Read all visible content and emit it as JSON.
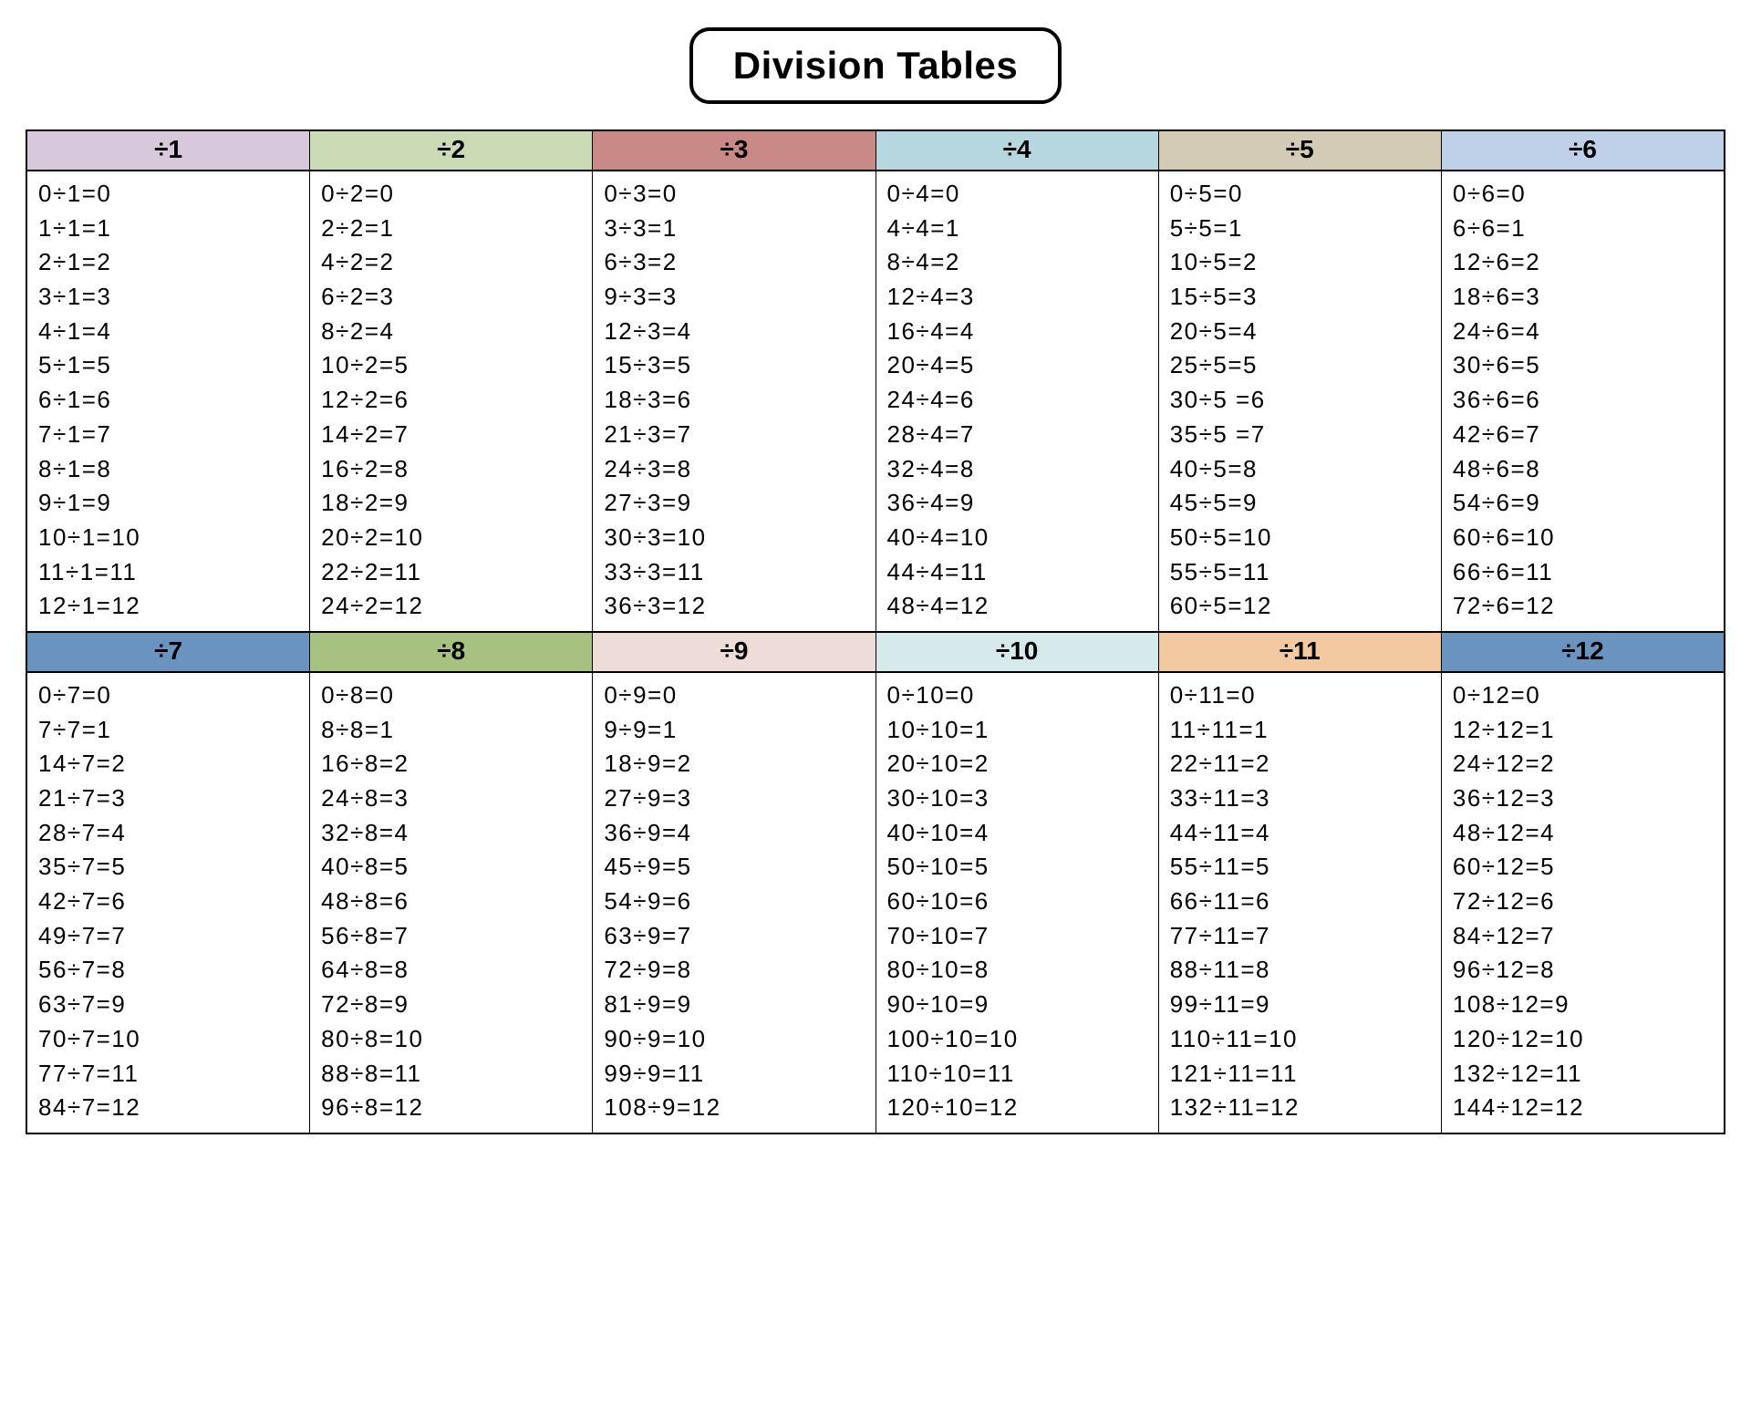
{
  "title": "Division Tables",
  "background_color": "#ffffff",
  "border_color": "#000000",
  "text_color": "#000000",
  "title_fontsize": 42,
  "header_fontsize": 28,
  "cell_fontsize": 26,
  "rows": [
    [
      {
        "header": "÷1",
        "header_color": "#d7c8db",
        "entries": [
          "0÷1=0",
          "1÷1=1",
          "2÷1=2",
          "3÷1=3",
          "4÷1=4",
          "5÷1=5",
          "6÷1=6",
          "7÷1=7",
          "8÷1=8",
          "9÷1=9",
          "10÷1=10",
          "11÷1=11",
          "12÷1=12"
        ]
      },
      {
        "header": "÷2",
        "header_color": "#cadbb5",
        "entries": [
          "0÷2=0",
          "2÷2=1",
          "4÷2=2",
          "6÷2=3",
          "8÷2=4",
          "10÷2=5",
          "12÷2=6",
          "14÷2=7",
          "16÷2=8",
          "18÷2=9",
          "20÷2=10",
          "22÷2=11",
          "24÷2=12"
        ]
      },
      {
        "header": "÷3",
        "header_color": "#c98984",
        "entries": [
          "0÷3=0",
          "3÷3=1",
          "6÷3=2",
          "9÷3=3",
          "12÷3=4",
          "15÷3=5",
          "18÷3=6",
          "21÷3=7",
          "24÷3=8",
          "27÷3=9",
          "30÷3=10",
          "33÷3=11",
          "36÷3=12"
        ]
      },
      {
        "header": "÷4",
        "header_color": "#b6d7df",
        "entries": [
          "0÷4=0",
          "4÷4=1",
          "8÷4=2",
          "12÷4=3",
          "16÷4=4",
          "20÷4=5",
          "24÷4=6",
          "28÷4=7",
          "32÷4=8",
          "36÷4=9",
          "40÷4=10",
          "44÷4=11",
          "48÷4=12"
        ]
      },
      {
        "header": "÷5",
        "header_color": "#d3cbb3",
        "entries": [
          "0÷5=0",
          "5÷5=1",
          "10÷5=2",
          "15÷5=3",
          "20÷5=4",
          "25÷5=5",
          "30÷5 =6",
          "35÷5 =7",
          "40÷5=8",
          "45÷5=9",
          "50÷5=10",
          "55÷5=11",
          "60÷5=12"
        ]
      },
      {
        "header": "÷6",
        "header_color": "#bfd1e9",
        "entries": [
          "0÷6=0",
          "6÷6=1",
          "12÷6=2",
          "18÷6=3",
          "24÷6=4",
          "30÷6=5",
          "36÷6=6",
          "42÷6=7",
          "48÷6=8",
          "54÷6=9",
          "60÷6=10",
          "66÷6=11",
          "72÷6=12"
        ]
      }
    ],
    [
      {
        "header": "÷7",
        "header_color": "#6b93bf",
        "entries": [
          "0÷7=0",
          "7÷7=1",
          "14÷7=2",
          "21÷7=3",
          "28÷7=4",
          "35÷7=5",
          "42÷7=6",
          "49÷7=7",
          "56÷7=8",
          "63÷7=9",
          "70÷7=10",
          "77÷7=11",
          "84÷7=12"
        ]
      },
      {
        "header": "÷8",
        "header_color": "#a6c180",
        "entries": [
          "0÷8=0",
          "8÷8=1",
          "16÷8=2",
          "24÷8=3",
          "32÷8=4",
          "40÷8=5",
          "48÷8=6",
          "56÷8=7",
          "64÷8=8",
          "72÷8=9",
          "80÷8=10",
          "88÷8=11",
          "96÷8=12"
        ]
      },
      {
        "header": "÷9",
        "header_color": "#eddcd8",
        "entries": [
          "0÷9=0",
          "9÷9=1",
          "18÷9=2",
          "27÷9=3",
          "36÷9=4",
          "45÷9=5",
          "54÷9=6",
          "63÷9=7",
          "72÷9=8",
          "81÷9=9",
          "90÷9=10",
          "99÷9=11",
          "108÷9=12"
        ]
      },
      {
        "header": "÷10",
        "header_color": "#d6eaec",
        "entries": [
          "0÷10=0",
          "10÷10=1",
          "20÷10=2",
          "30÷10=3",
          "40÷10=4",
          "50÷10=5",
          "60÷10=6",
          "70÷10=7",
          "80÷10=8",
          "90÷10=9",
          "100÷10=10",
          "110÷10=11",
          "120÷10=12"
        ]
      },
      {
        "header": "÷11",
        "header_color": "#f2c9a1",
        "entries": [
          "0÷11=0",
          "11÷11=1",
          "22÷11=2",
          "33÷11=3",
          "44÷11=4",
          "55÷11=5",
          "66÷11=6",
          "77÷11=7",
          "88÷11=8",
          "99÷11=9",
          "110÷11=10",
          "121÷11=11",
          "132÷11=12"
        ]
      },
      {
        "header": "÷12",
        "header_color": "#6b93bf",
        "entries": [
          "0÷12=0",
          "12÷12=1",
          "24÷12=2",
          "36÷12=3",
          "48÷12=4",
          "60÷12=5",
          "72÷12=6",
          "84÷12=7",
          "96÷12=8",
          "108÷12=9",
          "120÷12=10",
          "132÷12=11",
          "144÷12=12"
        ]
      }
    ]
  ]
}
